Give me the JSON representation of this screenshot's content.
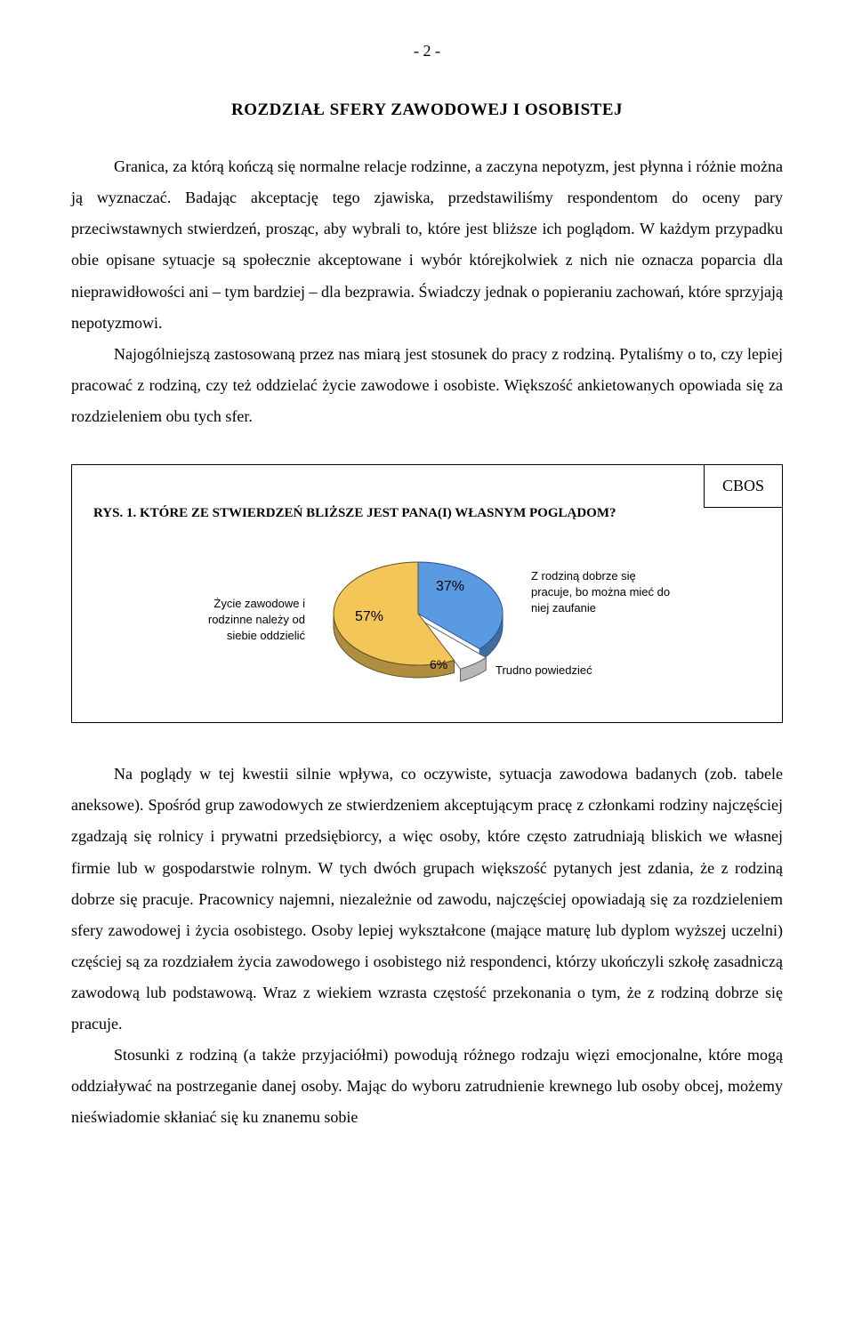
{
  "page_number": "- 2 -",
  "section_title": "ROZDZIAŁ SFERY ZAWODOWEJ I OSOBISTEJ",
  "paragraph_1": "Granica, za którą kończą się normalne relacje rodzinne, a zaczyna nepotyzm, jest płynna i różnie można ją wyznaczać. Badając akceptację tego zjawiska, przedstawiliśmy respondentom do oceny pary przeciwstawnych stwierdzeń, prosząc, aby wybrali to, które jest bliższe ich poglądom. W każdym przypadku obie opisane sytuacje są społecznie akceptowane i wybór którejkolwiek z nich nie oznacza poparcia dla nieprawidłowości ani – tym bardziej – dla bezprawia. Świadczy jednak o popieraniu zachowań, które sprzyjają nepotyzmowi.",
  "paragraph_2": "Najogólniejszą zastosowaną przez nas miarą jest stosunek do pracy z rodziną. Pytaliśmy o to, czy lepiej pracować z rodziną, czy też oddzielać życie zawodowe i osobiste. Większość ankietowanych opowiada się za rozdzieleniem obu tych sfer.",
  "figure": {
    "tag": "CBOS",
    "caption": "RYS. 1. KTÓRE ZE STWIERDZEŃ BLIŻSZE JEST PANA(I) WŁASNYM POGLĄDOM?",
    "chart": {
      "type": "pie",
      "slices": [
        {
          "label": "Życie zawodowe i rodzinne należy od siebie oddzielić",
          "value": 57,
          "pct_text": "57%",
          "color": "#f4c658",
          "stroke": "#615128"
        },
        {
          "label": "Z rodziną dobrze się pracuje, bo można mieć do niej zaufanie",
          "value": 37,
          "pct_text": "37%",
          "color": "#5a9ae1",
          "stroke": "#2b5494"
        },
        {
          "label": "Trudno powiedzieć",
          "value": 6,
          "pct_text": "6%",
          "color": "#ffffff",
          "stroke": "#666666"
        }
      ],
      "background_color": "#ffffff",
      "label_font_family": "Arial",
      "label_font_size": 13,
      "pct_font_size": 16,
      "tilt_3d": true,
      "depth": 14
    }
  },
  "paragraph_3": "Na poglądy w tej kwestii silnie wpływa, co oczywiste, sytuacja zawodowa badanych (zob. tabele aneksowe). Spośród grup zawodowych ze stwierdzeniem akceptującym pracę z członkami rodziny najczęściej zgadzają się rolnicy i prywatni przedsiębiorcy, a więc osoby, które często zatrudniają bliskich we własnej firmie lub w gospodarstwie rolnym. W tych dwóch grupach większość pytanych jest zdania, że z rodziną dobrze się pracuje. Pracownicy najemni, niezależnie od zawodu, najczęściej opowiadają się za rozdzieleniem sfery zawodowej i życia osobistego. Osoby lepiej wykształcone (mające maturę lub dyplom wyższej uczelni) częściej są za rozdziałem życia zawodowego i osobistego niż respondenci, którzy ukończyli szkołę zasadniczą zawodową lub podstawową. Wraz  z wiekiem wzrasta częstość przekonania o tym, że z rodziną dobrze się pracuje.",
  "paragraph_4": "Stosunki z rodziną (a także przyjaciółmi) powodują różnego rodzaju więzi emocjonalne, które mogą oddziaływać na postrzeganie danej osoby. Mając do wyboru zatrudnienie krewnego lub osoby obcej, możemy nieświadomie skłaniać się ku znanemu sobie"
}
